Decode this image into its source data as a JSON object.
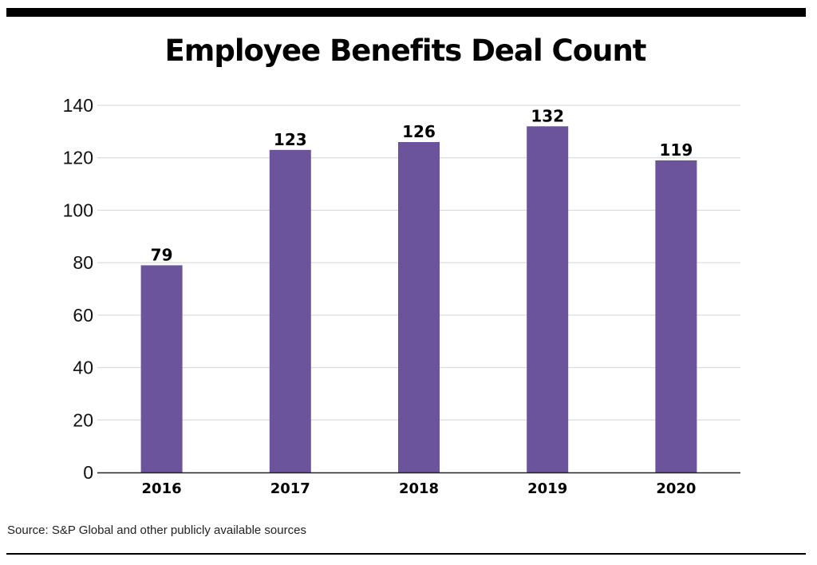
{
  "chart_data": {
    "type": "bar",
    "title": "Employee Benefits Deal Count",
    "categories": [
      "2016",
      "2017",
      "2018",
      "2019",
      "2020"
    ],
    "values": [
      79,
      123,
      126,
      132,
      119
    ],
    "ylim": [
      0,
      140
    ],
    "yticks": [
      "0",
      "20",
      "40",
      "60",
      "80",
      "100",
      "120",
      "140"
    ],
    "xlabel": "",
    "ylabel": "",
    "grid": true,
    "data_labels": true,
    "bar_color": "#6b549c"
  },
  "source": "Source: S&P Global and other publicly available sources"
}
